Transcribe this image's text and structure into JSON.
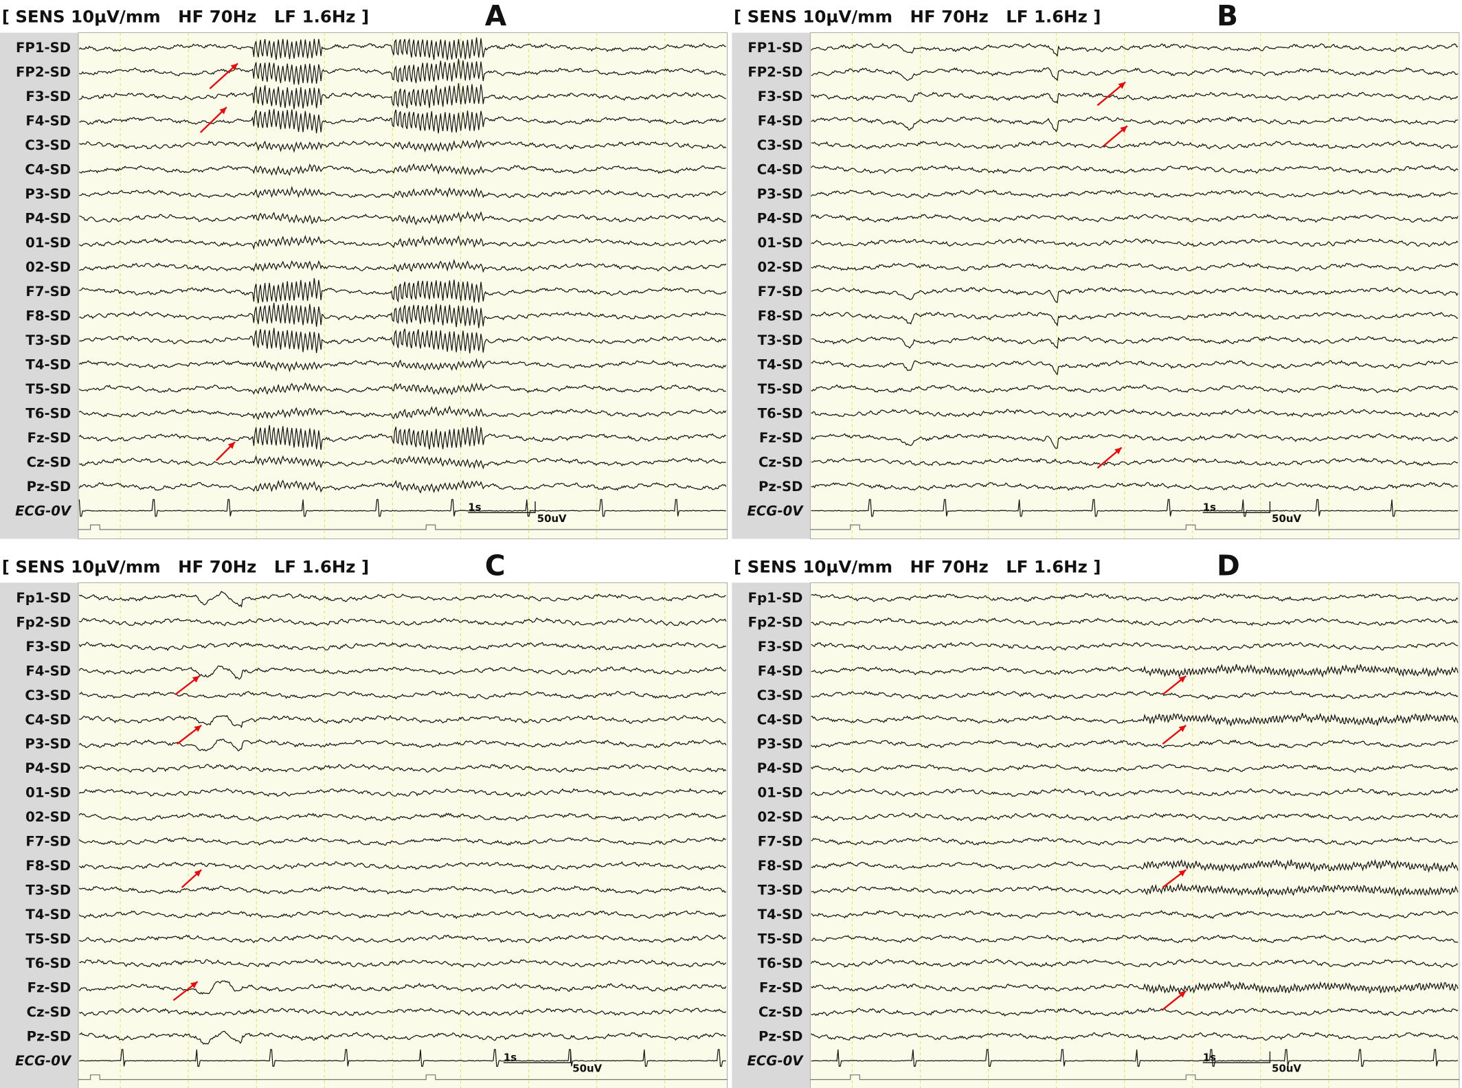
{
  "panels": [
    {
      "letter": "A",
      "settings": "[ SENS 10µV/mm   HF 70Hz   LF 1.6Hz ]",
      "time_scale": "1s",
      "amp_scale": "50uV",
      "channels": [
        "FP1-SD",
        "FP2-SD",
        "F3-SD",
        "F4-SD",
        "C3-SD",
        "C4-SD",
        "P3-SD",
        "P4-SD",
        "01-SD",
        "02-SD",
        "F7-SD",
        "F8-SD",
        "T3-SD",
        "T4-SD",
        "T5-SD",
        "T6-SD",
        "Fz-SD",
        "Cz-SD",
        "Pz-SD",
        "ECG-0V"
      ]
    },
    {
      "letter": "B",
      "settings": "[ SENS 10µV/mm   HF 70Hz   LF 1.6Hz ]",
      "time_scale": "1s",
      "amp_scale": "50uV",
      "channels": [
        "FP1-SD",
        "FP2-SD",
        "F3-SD",
        "F4-SD",
        "C3-SD",
        "C4-SD",
        "P3-SD",
        "P4-SD",
        "01-SD",
        "02-SD",
        "F7-SD",
        "F8-SD",
        "T3-SD",
        "T4-SD",
        "T5-SD",
        "T6-SD",
        "Fz-SD",
        "Cz-SD",
        "Pz-SD",
        "ECG-0V"
      ]
    },
    {
      "letter": "C",
      "settings": "[ SENS 10µV/mm   HF 70Hz   LF 1.6Hz ]",
      "time_scale": "1s",
      "amp_scale": "50uV",
      "channels": [
        "Fp1-SD",
        "Fp2-SD",
        "F3-SD",
        "F4-SD",
        "C3-SD",
        "C4-SD",
        "P3-SD",
        "P4-SD",
        "01-SD",
        "02-SD",
        "F7-SD",
        "F8-SD",
        "T3-SD",
        "T4-SD",
        "T5-SD",
        "T6-SD",
        "Fz-SD",
        "Cz-SD",
        "Pz-SD",
        "ECG-0V"
      ]
    },
    {
      "letter": "D",
      "settings": "[ SENS 10µV/mm   HF 70Hz   LF 1.6Hz ]",
      "time_scale": "1s",
      "amp_scale": "50uV",
      "channels": [
        "Fp1-SD",
        "Fp2-SD",
        "F3-SD",
        "F4-SD",
        "C3-SD",
        "C4-SD",
        "P3-SD",
        "P4-SD",
        "01-SD",
        "02-SD",
        "F7-SD",
        "F8-SD",
        "T3-SD",
        "T4-SD",
        "T5-SD",
        "T6-SD",
        "Fz-SD",
        "Cz-SD",
        "Pz-SD",
        "ECG-0V"
      ]
    }
  ]
}
